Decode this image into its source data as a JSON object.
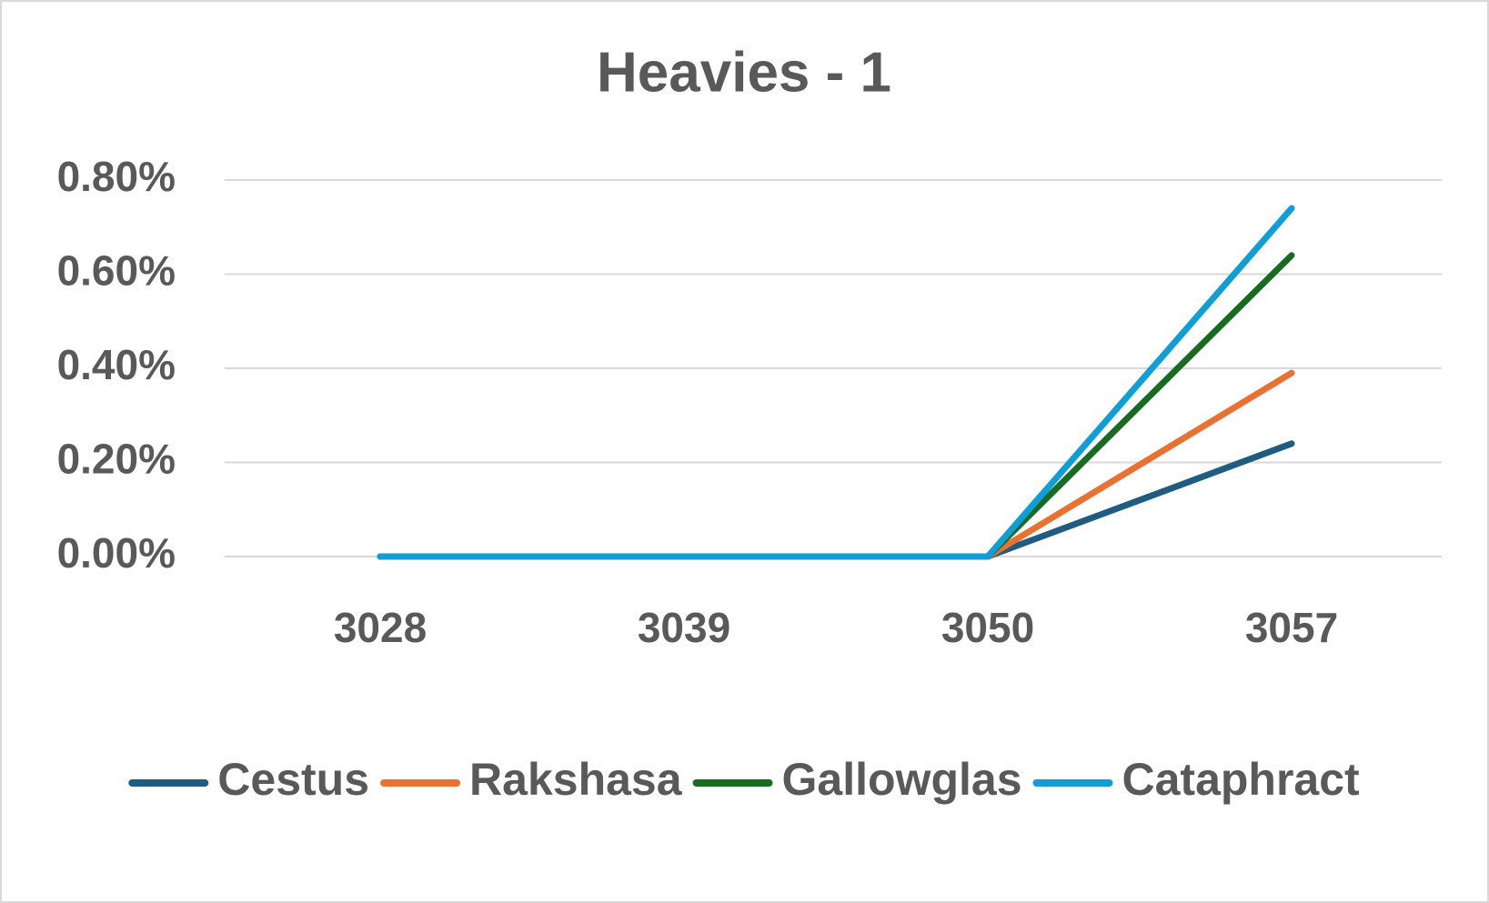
{
  "chart_data": {
    "type": "line",
    "title": "Heavies - 1",
    "categories": [
      "3028",
      "3039",
      "3050",
      "3057"
    ],
    "series": [
      {
        "name": "Cestus",
        "color": "#1f5c80",
        "values": [
          0,
          0,
          0,
          0.24
        ]
      },
      {
        "name": "Rakshasa",
        "color": "#e97132",
        "values": [
          0,
          0,
          0,
          0.39
        ]
      },
      {
        "name": "Gallowglas",
        "color": "#196b24",
        "values": [
          0,
          0,
          0,
          0.64
        ]
      },
      {
        "name": "Cataphract",
        "color": "#0f9ed5",
        "values": [
          0,
          0,
          0,
          0.74
        ]
      }
    ],
    "ylim": [
      0,
      0.8
    ],
    "yticks": [
      {
        "value": 0,
        "label": "0.00%"
      },
      {
        "value": 0.2,
        "label": "0.20%"
      },
      {
        "value": 0.4,
        "label": "0.40%"
      },
      {
        "value": 0.6,
        "label": "0.60%"
      },
      {
        "value": 0.8,
        "label": "0.80%"
      }
    ],
    "grid": true,
    "legend": "bottom"
  }
}
